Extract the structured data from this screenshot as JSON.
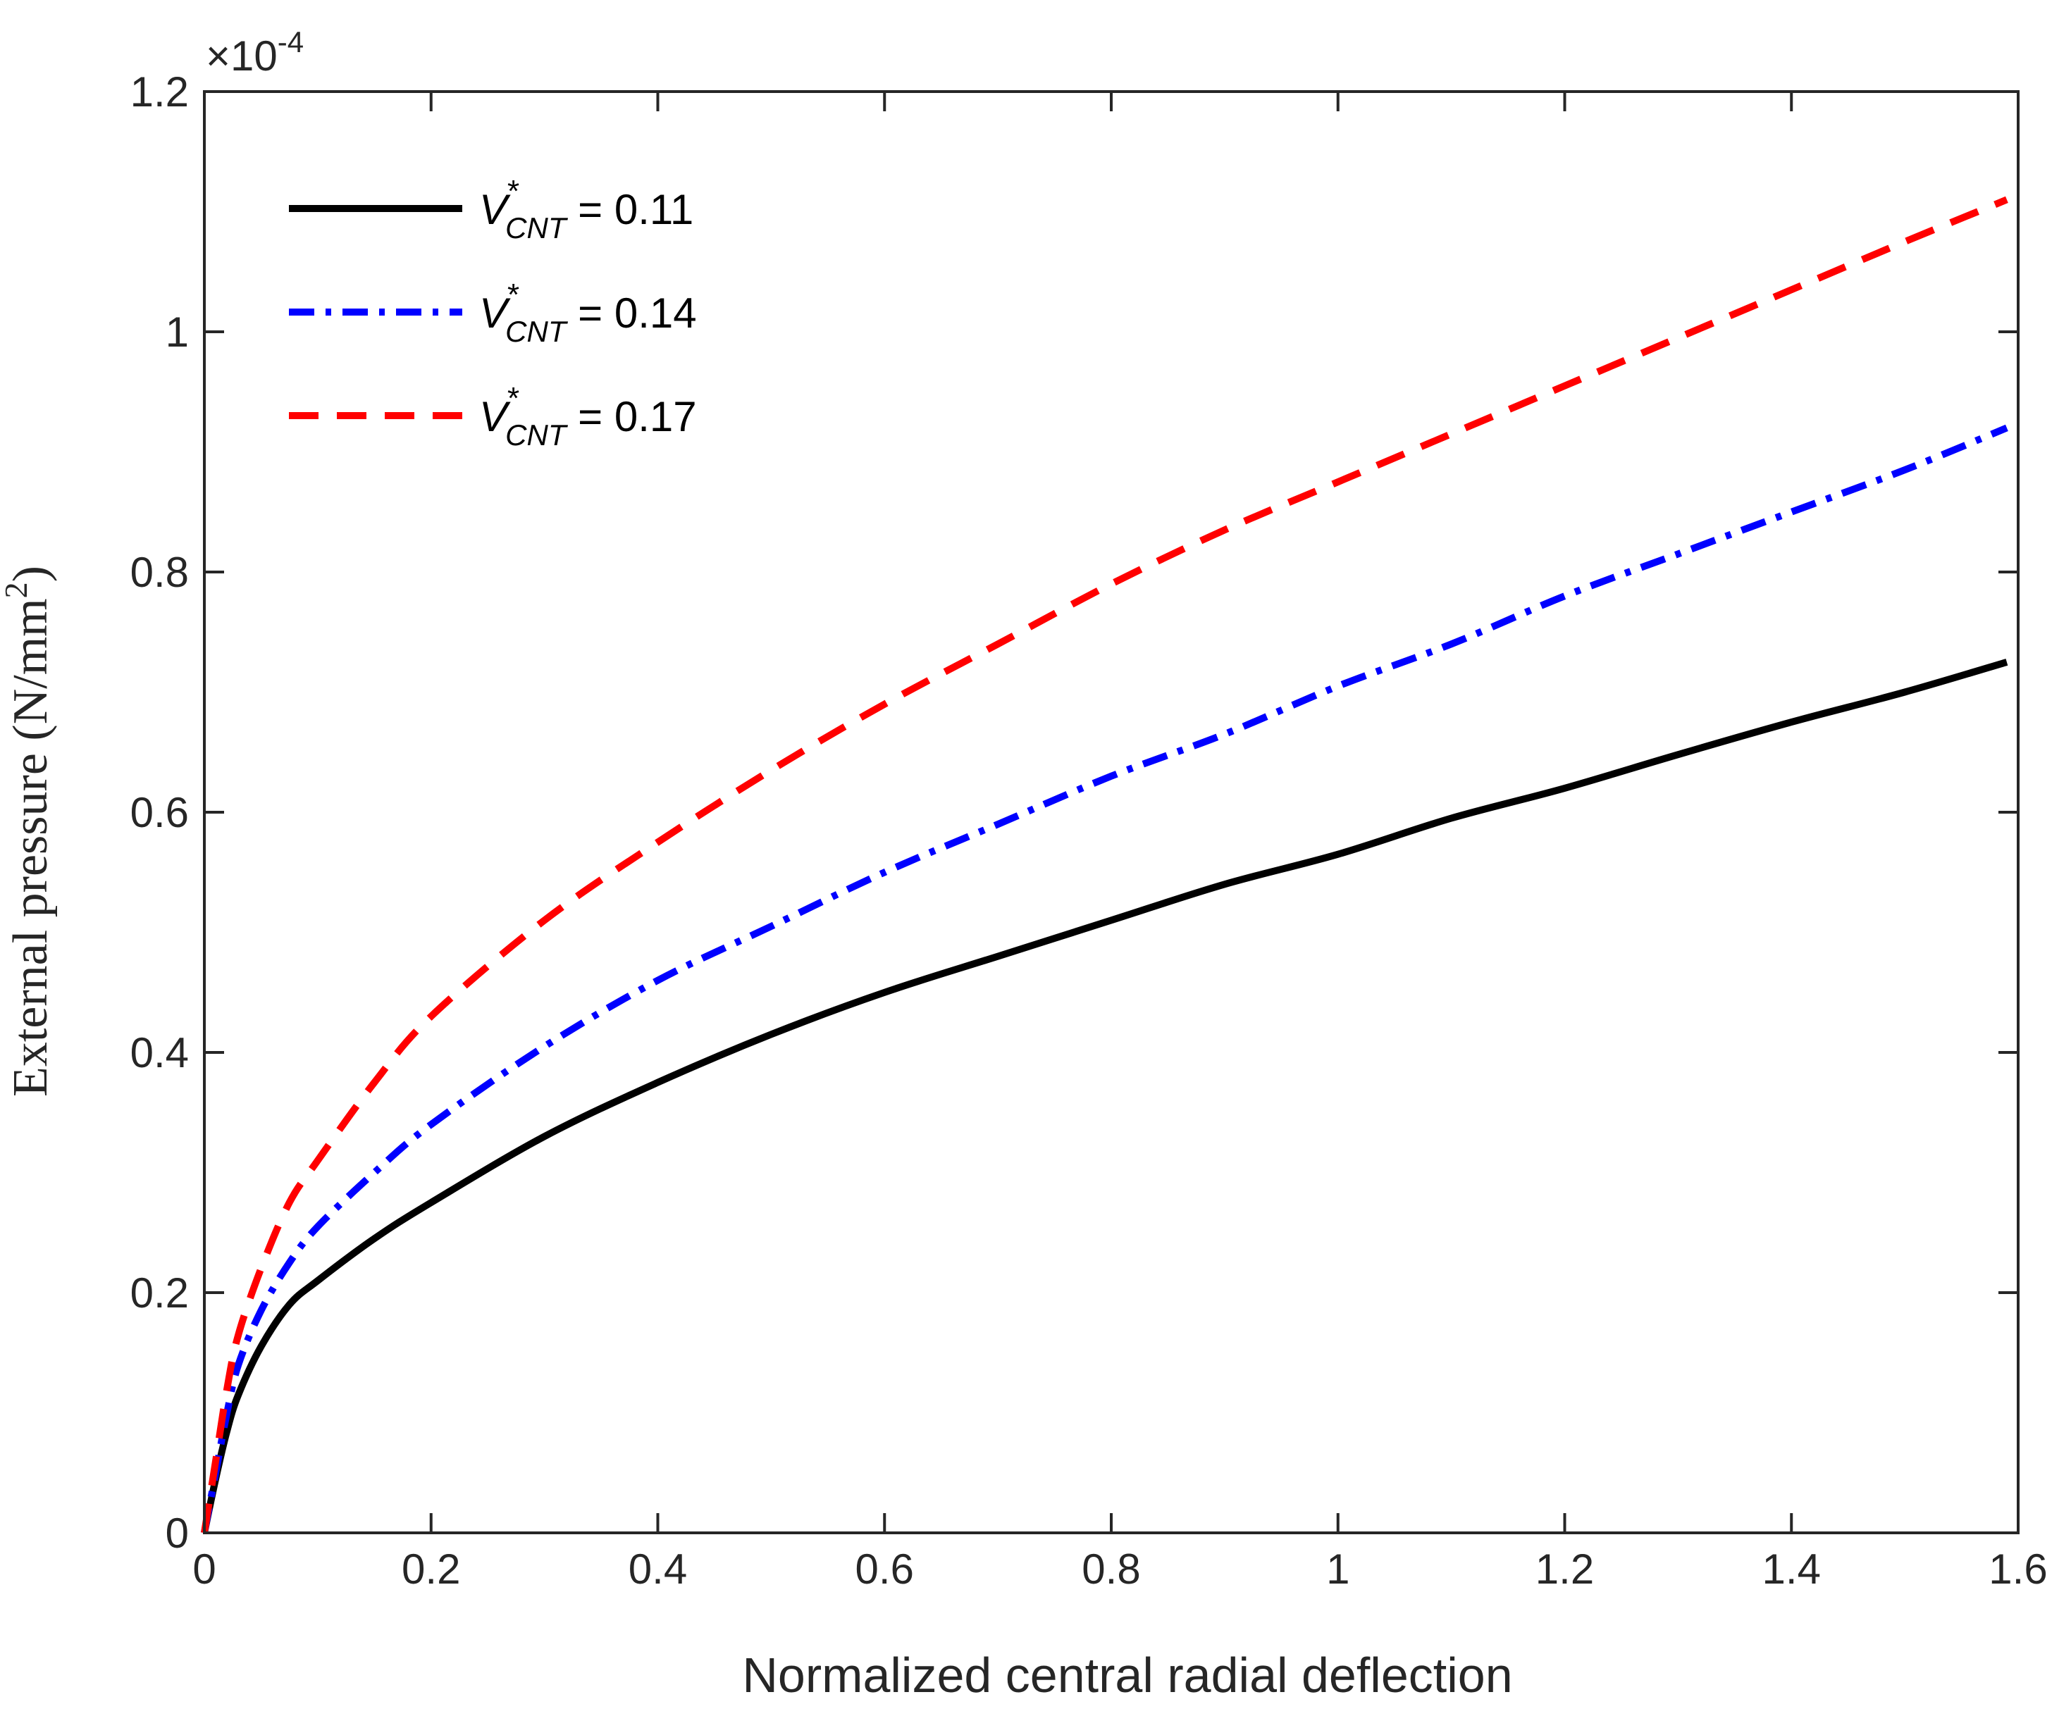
{
  "chart_data": {
    "type": "line",
    "title": "",
    "xlabel": "Normalized central radial deflection",
    "ylabel": "External pressure (N/mm²)",
    "ylabel_main": "External pressure (N/mm",
    "ylabel_sup": "2",
    "ylabel_close": ")",
    "y_exponent_base": "×10",
    "y_exponent_power": "-4",
    "xlim": [
      0,
      1.6
    ],
    "ylim": [
      0,
      1.2
    ],
    "x_ticks": [
      0,
      0.2,
      0.4,
      0.6,
      0.8,
      1,
      1.2,
      1.4,
      1.6
    ],
    "x_tick_labels": [
      "0",
      "0.2",
      "0.4",
      "0.6",
      "0.8",
      "1",
      "1.2",
      "1.4",
      "1.6"
    ],
    "y_ticks": [
      0,
      0.2,
      0.4,
      0.6,
      0.8,
      1,
      1.2
    ],
    "y_tick_labels": [
      "0",
      "0.2",
      "0.4",
      "0.6",
      "0.8",
      "1",
      "1.2"
    ],
    "grid": false,
    "legend_position": "top-left",
    "series": [
      {
        "name": "V*CNT = 0.11",
        "legend_var": "V",
        "legend_star": "*",
        "legend_sub": "CNT",
        "legend_value": " = 0.11",
        "color": "#000000",
        "style": "solid",
        "x": [
          0,
          0.01,
          0.02,
          0.03,
          0.05,
          0.075,
          0.1,
          0.15,
          0.2,
          0.3,
          0.4,
          0.5,
          0.6,
          0.7,
          0.8,
          0.9,
          1.0,
          1.1,
          1.2,
          1.3,
          1.4,
          1.5,
          1.59
        ],
        "y": [
          0,
          0.045,
          0.085,
          0.115,
          0.155,
          0.19,
          0.21,
          0.245,
          0.275,
          0.33,
          0.375,
          0.415,
          0.45,
          0.48,
          0.51,
          0.54,
          0.565,
          0.595,
          0.62,
          0.648,
          0.675,
          0.7,
          0.725
        ]
      },
      {
        "name": "V*CNT = 0.14",
        "legend_var": "V",
        "legend_star": "*",
        "legend_sub": "CNT",
        "legend_value": " = 0.14",
        "color": "#0000ff",
        "style": "dashdot",
        "x": [
          0,
          0.01,
          0.02,
          0.03,
          0.05,
          0.075,
          0.1,
          0.15,
          0.2,
          0.3,
          0.4,
          0.5,
          0.6,
          0.7,
          0.8,
          0.9,
          1.0,
          1.1,
          1.2,
          1.3,
          1.4,
          1.5,
          1.59
        ],
        "y": [
          0,
          0.05,
          0.1,
          0.14,
          0.185,
          0.225,
          0.255,
          0.3,
          0.34,
          0.405,
          0.46,
          0.505,
          0.55,
          0.59,
          0.63,
          0.665,
          0.705,
          0.74,
          0.78,
          0.815,
          0.85,
          0.885,
          0.92
        ]
      },
      {
        "name": "V*CNT = 0.17",
        "legend_var": "V",
        "legend_star": "*",
        "legend_sub": "CNT",
        "legend_value": " = 0.17",
        "color": "#ff0000",
        "style": "dashed",
        "x": [
          0,
          0.01,
          0.02,
          0.03,
          0.05,
          0.075,
          0.1,
          0.15,
          0.2,
          0.3,
          0.4,
          0.5,
          0.6,
          0.7,
          0.8,
          0.9,
          1.0,
          1.1,
          1.2,
          1.3,
          1.4,
          1.5,
          1.59
        ],
        "y": [
          0,
          0.06,
          0.12,
          0.165,
          0.22,
          0.275,
          0.31,
          0.375,
          0.43,
          0.51,
          0.575,
          0.635,
          0.69,
          0.74,
          0.79,
          0.835,
          0.875,
          0.915,
          0.955,
          0.995,
          1.035,
          1.075,
          1.11
        ]
      }
    ]
  }
}
